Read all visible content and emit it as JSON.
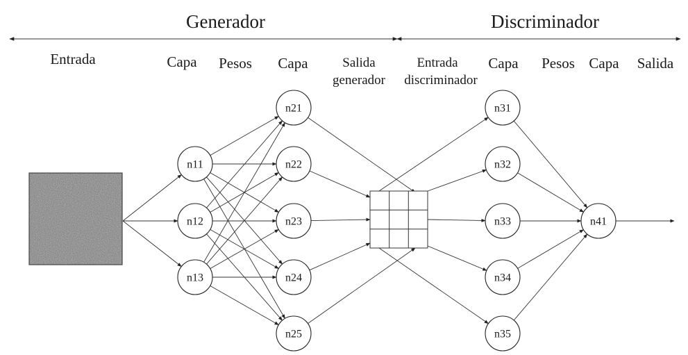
{
  "sections": {
    "generator": "Generador",
    "discriminator": "Discriminador"
  },
  "columns": {
    "input": "Entrada",
    "gen_layer1": "Capa",
    "gen_weights": "Pesos",
    "gen_layer2": "Capa",
    "gen_output_line1": "Salida",
    "gen_output_line2": "generador",
    "disc_input_line1": "Entrada",
    "disc_input_line2": "discriminador",
    "disc_layer1": "Capa",
    "disc_weights": "Pesos",
    "disc_layer2": "Capa",
    "disc_output": "Salida"
  },
  "nodes": {
    "n11": "n11",
    "n12": "n12",
    "n13": "n13",
    "n21": "n21",
    "n22": "n22",
    "n23": "n23",
    "n24": "n24",
    "n25": "n25",
    "n31": "n31",
    "n32": "n32",
    "n33": "n33",
    "n34": "n34",
    "n35": "n35",
    "n41": "n41"
  },
  "colors": {
    "stroke": "#333333",
    "noise_base": "#7a7a7a"
  }
}
